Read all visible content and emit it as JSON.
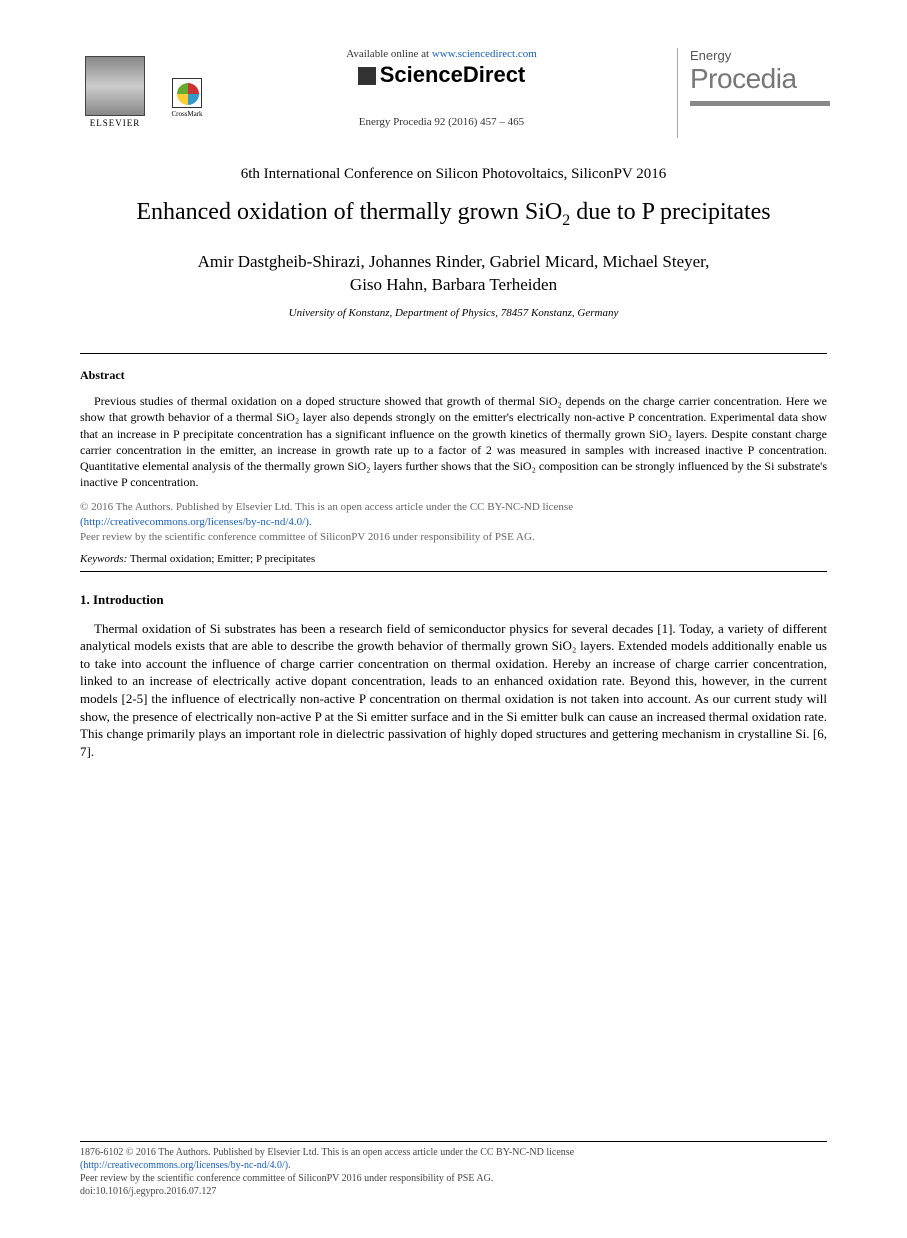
{
  "header": {
    "elsevier_label": "ELSEVIER",
    "crossmark_label": "CrossMark",
    "available_prefix": "Available online at ",
    "available_url": "www.sciencedirect.com",
    "sciencedirect_label": "ScienceDirect",
    "citation": "Energy Procedia 92 (2016) 457 – 465",
    "journal_small": "Energy",
    "journal_big": "Procedia"
  },
  "conference": "6th International Conference on Silicon Photovoltaics, SiliconPV 2016",
  "title_pre": "Enhanced oxidation of thermally grown SiO",
  "title_sub": "2",
  "title_post": " due to P precipitates",
  "authors_line1": "Amir Dastgheib-Shirazi, Johannes Rinder, Gabriel Micard, Michael Steyer,",
  "authors_line2": "Giso Hahn, Barbara Terheiden",
  "affiliation": "University of Konstanz, Department of Physics, 78457 Konstanz, Germany",
  "abstract": {
    "heading": "Abstract",
    "body": "Previous studies of thermal oxidation on a doped structure showed that growth of thermal SiO₂ depends on the charge carrier concentration. Here we show that growth behavior of a thermal SiO₂ layer also depends strongly on the emitter's electrically non-active P concentration. Experimental data show that an increase in P precipitate concentration has a significant influence on the growth kinetics of thermally grown SiO₂ layers. Despite constant charge carrier concentration in the emitter, an increase in growth rate up to a factor of 2 was measured in samples with increased inactive P concentration. Quantitative elemental analysis of the thermally grown SiO₂ layers further shows that the SiO₂ composition can be strongly influenced by the Si substrate's inactive P concentration."
  },
  "copyright": {
    "line1": "© 2016 The Authors. Published by Elsevier Ltd. This is an open access article under the CC BY-NC-ND license",
    "license_url": "(http://creativecommons.org/licenses/by-nc-nd/4.0/).",
    "line2": "Peer review by the scientific conference committee of SiliconPV 2016 under responsibility of PSE AG."
  },
  "keywords": {
    "label": "Keywords:",
    "text": " Thermal oxidation; Emitter; P precipitates"
  },
  "introduction": {
    "heading": "1. Introduction",
    "body": "Thermal oxidation of Si substrates has been a research field of semiconductor physics for several decades [1]. Today, a variety of different analytical models exists that are able to describe the growth behavior of thermally grown SiO₂ layers. Extended models additionally enable us to take into account the influence of charge carrier concentration on thermal oxidation. Hereby an increase of charge carrier concentration, linked to an increase of electrically active dopant concentration, leads to an enhanced oxidation rate. Beyond this, however, in the current models [2-5] the influence of electrically non-active P concentration on thermal oxidation is not taken into account. As our current study will show, the presence of electrically non-active P at the Si emitter surface and in the Si emitter bulk can cause an increased thermal oxidation rate. This change primarily plays an important role in dielectric passivation of highly doped structures and gettering mechanism in crystalline Si. [6, 7]."
  },
  "footer": {
    "issn_line": "1876-6102 © 2016 The Authors. Published by Elsevier Ltd. This is an open access article under the CC BY-NC-ND license",
    "license_url": "(http://creativecommons.org/licenses/by-nc-nd/4.0/).",
    "peer": "Peer review by the scientific conference committee of SiliconPV 2016 under responsibility of PSE AG.",
    "doi": "doi:10.1016/j.egypro.2016.07.127"
  },
  "colors": {
    "text": "#000000",
    "link": "#1a5fb4",
    "muted": "#666666",
    "journal_grey": "#777777",
    "background": "#ffffff"
  },
  "typography": {
    "body_font": "Times New Roman",
    "title_fontsize_pt": 18,
    "authors_fontsize_pt": 13,
    "abstract_fontsize_pt": 9,
    "intro_fontsize_pt": 10,
    "footer_fontsize_pt": 7.5
  }
}
